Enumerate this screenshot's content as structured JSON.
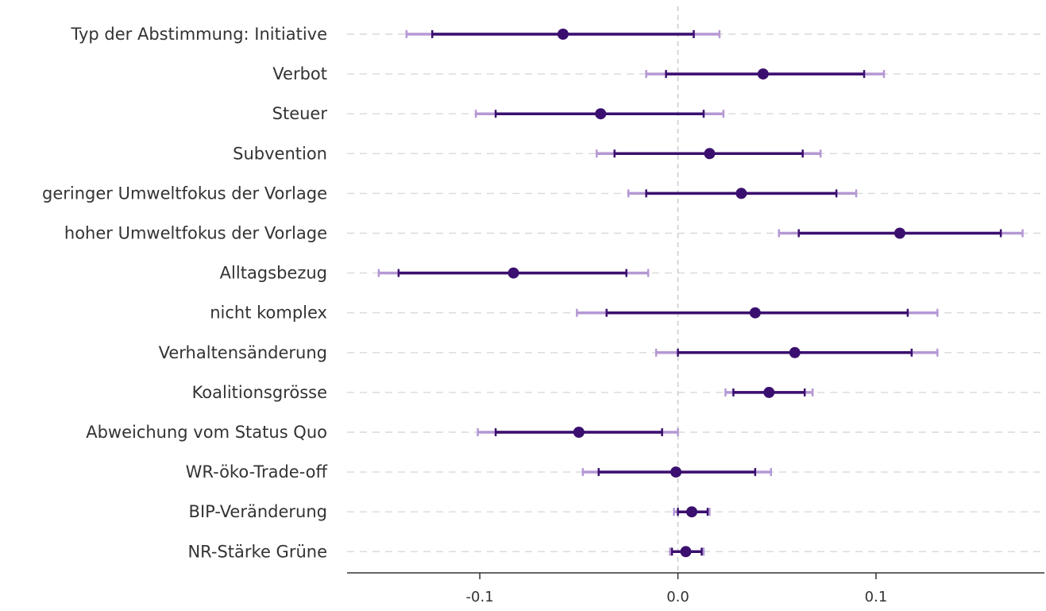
{
  "chart_data": {
    "type": "scatter",
    "title": "",
    "xlabel": "",
    "ylabel": "",
    "xlim": [
      -0.167,
      0.185
    ],
    "x_ticks": [
      -0.1,
      0.0,
      0.1
    ],
    "x_tick_labels": [
      "-0.1",
      "0.0",
      "0.1"
    ],
    "reference_line": 0,
    "grid": "dashed horizontal lines per row",
    "colors": {
      "point": "#3b0f6f",
      "inner_interval": "#3b0f6f",
      "outer_interval": "#b598d4",
      "grid": "#d9d9d9",
      "reference": "#c8c8c8",
      "axis": "#333333"
    },
    "categories": [
      "Typ der Abstimmung: Initiative",
      "Verbot",
      "Steuer",
      "Subvention",
      "geringer Umweltfokus der Vorlage",
      "hoher Umweltfokus der Vorlage",
      "Alltagsbezug",
      "nicht komplex",
      "Verhaltensänderung",
      "Koalitionsgrösse",
      "Abweichung vom Status Quo",
      "WR-öko-Trade-off",
      "BIP-Veränderung",
      "NR-Stärke Grüne"
    ],
    "estimates": [
      -0.058,
      0.043,
      -0.039,
      0.016,
      0.032,
      0.112,
      -0.083,
      0.039,
      0.059,
      0.046,
      -0.05,
      -0.001,
      0.007,
      0.004
    ],
    "inner_low": [
      -0.124,
      -0.006,
      -0.092,
      -0.032,
      -0.016,
      0.061,
      -0.141,
      -0.036,
      0.0,
      0.028,
      -0.092,
      -0.04,
      0.0,
      -0.003
    ],
    "inner_high": [
      0.008,
      0.094,
      0.013,
      0.063,
      0.08,
      0.163,
      -0.026,
      0.116,
      0.118,
      0.064,
      -0.008,
      0.039,
      0.015,
      0.012
    ],
    "outer_low": [
      -0.137,
      -0.016,
      -0.102,
      -0.041,
      -0.025,
      0.051,
      -0.151,
      -0.051,
      -0.011,
      0.024,
      -0.101,
      -0.048,
      -0.002,
      -0.004
    ],
    "outer_high": [
      0.021,
      0.104,
      0.023,
      0.072,
      0.09,
      0.174,
      -0.015,
      0.131,
      0.131,
      0.068,
      0.0,
      0.047,
      0.016,
      0.013
    ]
  }
}
